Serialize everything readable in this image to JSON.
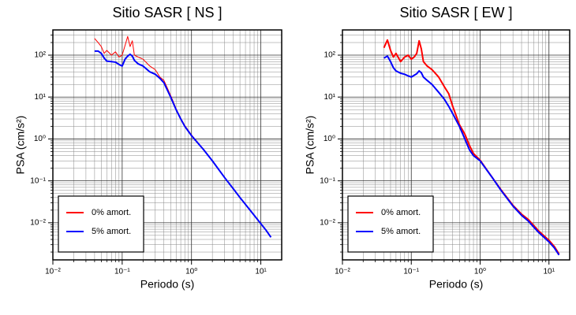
{
  "chart_data": [
    {
      "type": "line",
      "title": "Sitio SASR [ NS ]",
      "x_label": "Periodo (s)",
      "y_label": "PSA (cm/s²)",
      "log_x": true,
      "log_y": true,
      "grid": true,
      "legend": "lower left",
      "xlim": [
        0.01,
        20
      ],
      "ylim": [
        0.0013,
        400
      ],
      "xticks": [
        {
          "value": 0.01,
          "label": "10⁻²"
        },
        {
          "value": 0.1,
          "label": "10⁻¹"
        },
        {
          "value": 1,
          "label": "10⁰"
        },
        {
          "value": 10,
          "label": "10¹"
        }
      ],
      "yticks": [
        {
          "value": 0.01,
          "label": "10⁻²"
        },
        {
          "value": 0.1,
          "label": "10⁻¹"
        },
        {
          "value": 1,
          "label": "10⁰"
        },
        {
          "value": 10,
          "label": "10¹"
        },
        {
          "value": 100,
          "label": "10²"
        }
      ],
      "x_minor_ticks": [
        0.02,
        0.03,
        0.04,
        0.05,
        0.06,
        0.07,
        0.08,
        0.09,
        0.2,
        0.3,
        0.4,
        0.5,
        0.6,
        0.7,
        0.8,
        0.9,
        2,
        3,
        4,
        5,
        6,
        7,
        8,
        9
      ],
      "y_minor_ticks": [
        0.002,
        0.003,
        0.004,
        0.005,
        0.006,
        0.007,
        0.008,
        0.009,
        0.02,
        0.03,
        0.04,
        0.05,
        0.06,
        0.07,
        0.08,
        0.09,
        0.2,
        0.3,
        0.4,
        0.5,
        0.6,
        0.7,
        0.8,
        0.9,
        2,
        3,
        4,
        5,
        6,
        7,
        8,
        9,
        20,
        30,
        40,
        50,
        60,
        70,
        80,
        90,
        200,
        300
      ],
      "x": [
        0.04,
        0.045,
        0.05,
        0.055,
        0.06,
        0.07,
        0.08,
        0.09,
        0.1,
        0.11,
        0.12,
        0.13,
        0.14,
        0.15,
        0.17,
        0.2,
        0.25,
        0.3,
        0.35,
        0.4,
        0.5,
        0.6,
        0.7,
        0.8,
        1,
        1.5,
        2,
        3,
        4,
        5,
        7,
        10,
        12,
        14
      ],
      "series": [
        {
          "name": "0% amort.",
          "color": "#ff0000",
          "width": 1,
          "values": [
            250,
            200,
            160,
            110,
            130,
            100,
            120,
            90,
            100,
            170,
            280,
            160,
            220,
            100,
            90,
            80,
            55,
            45,
            30,
            25,
            11,
            5.3,
            3.1,
            2.1,
            1.25,
            0.56,
            0.3,
            0.12,
            0.066,
            0.04,
            0.02,
            0.0096,
            0.0066,
            0.0046
          ]
        },
        {
          "name": "5% amort.",
          "color": "#0000ff",
          "width": 2,
          "values": [
            125,
            125,
            110,
            85,
            72,
            70,
            68,
            60,
            55,
            80,
            95,
            105,
            95,
            75,
            62,
            55,
            40,
            35,
            28,
            22,
            10,
            5,
            3,
            2,
            1.2,
            0.55,
            0.3,
            0.12,
            0.065,
            0.04,
            0.02,
            0.0095,
            0.0065,
            0.0045
          ]
        }
      ]
    },
    {
      "type": "line",
      "title": "Sitio SASR [ EW ]",
      "x_label": "Periodo (s)",
      "y_label": "PSA (cm/s²)",
      "log_x": true,
      "log_y": true,
      "grid": true,
      "legend": "lower left",
      "xlim": [
        0.01,
        20
      ],
      "ylim": [
        0.0013,
        400
      ],
      "xticks": [
        {
          "value": 0.01,
          "label": "10⁻²"
        },
        {
          "value": 0.1,
          "label": "10⁻¹"
        },
        {
          "value": 1,
          "label": "10⁰"
        },
        {
          "value": 10,
          "label": "10¹"
        }
      ],
      "yticks": [
        {
          "value": 0.01,
          "label": "10⁻²"
        },
        {
          "value": 0.1,
          "label": "10⁻¹"
        },
        {
          "value": 1,
          "label": "10⁰"
        },
        {
          "value": 10,
          "label": "10¹"
        },
        {
          "value": 100,
          "label": "10²"
        }
      ],
      "x_minor_ticks": [
        0.02,
        0.03,
        0.04,
        0.05,
        0.06,
        0.07,
        0.08,
        0.09,
        0.2,
        0.3,
        0.4,
        0.5,
        0.6,
        0.7,
        0.8,
        0.9,
        2,
        3,
        4,
        5,
        6,
        7,
        8,
        9
      ],
      "y_minor_ticks": [
        0.002,
        0.003,
        0.004,
        0.005,
        0.006,
        0.007,
        0.008,
        0.009,
        0.02,
        0.03,
        0.04,
        0.05,
        0.06,
        0.07,
        0.08,
        0.09,
        0.2,
        0.3,
        0.4,
        0.5,
        0.6,
        0.7,
        0.8,
        0.9,
        2,
        3,
        4,
        5,
        6,
        7,
        8,
        9,
        20,
        30,
        40,
        50,
        60,
        70,
        80,
        90,
        200,
        300
      ],
      "x": [
        0.04,
        0.045,
        0.05,
        0.055,
        0.06,
        0.07,
        0.08,
        0.09,
        0.1,
        0.11,
        0.12,
        0.13,
        0.14,
        0.15,
        0.17,
        0.2,
        0.25,
        0.3,
        0.35,
        0.4,
        0.5,
        0.6,
        0.7,
        0.8,
        1,
        1.5,
        2,
        3,
        4,
        5,
        7,
        10,
        12,
        14
      ],
      "series": [
        {
          "name": "0% amort.",
          "color": "#ff0000",
          "width": 2,
          "values": [
            150,
            230,
            130,
            90,
            110,
            70,
            90,
            100,
            80,
            90,
            110,
            220,
            140,
            70,
            55,
            45,
            30,
            18,
            12,
            6,
            2.2,
            1.3,
            0.7,
            0.45,
            0.31,
            0.12,
            0.062,
            0.026,
            0.016,
            0.012,
            0.0065,
            0.0038,
            0.0027,
            0.0018
          ]
        },
        {
          "name": "5% amort.",
          "color": "#0000ff",
          "width": 2,
          "values": [
            85,
            95,
            70,
            50,
            42,
            37,
            35,
            32,
            30,
            33,
            36,
            42,
            38,
            30,
            25,
            20,
            13,
            9,
            6,
            4,
            2,
            1,
            0.55,
            0.4,
            0.3,
            0.12,
            0.06,
            0.025,
            0.015,
            0.011,
            0.006,
            0.0035,
            0.0025,
            0.0017
          ]
        }
      ]
    }
  ]
}
